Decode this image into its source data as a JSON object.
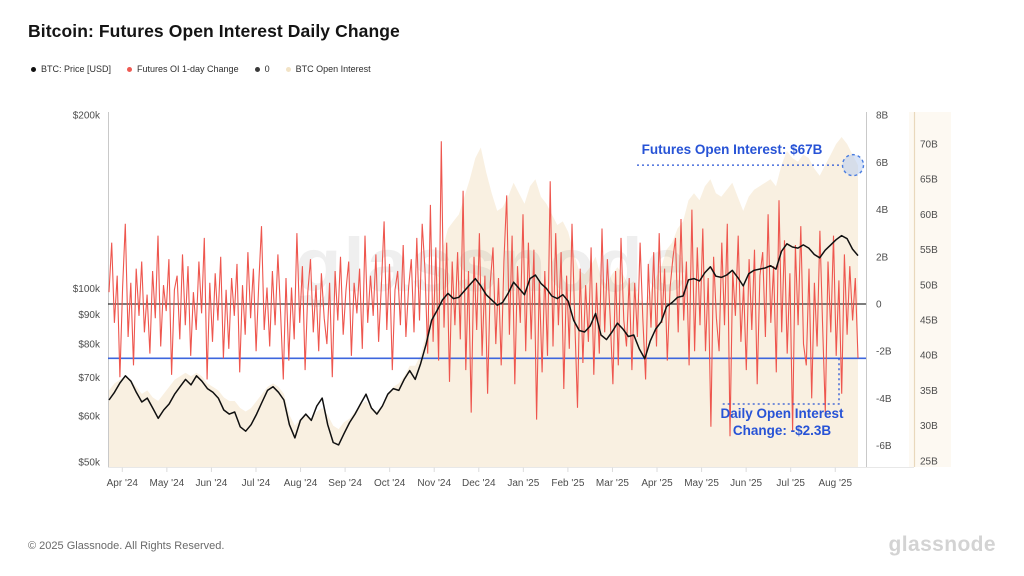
{
  "title": "Bitcoin: Futures Open Interest Daily Change",
  "legend": [
    {
      "label": "BTC: Price [USD]",
      "color": "#111111"
    },
    {
      "label": "Futures OI 1-day Change",
      "color": "#ee5a52"
    },
    {
      "label": "0",
      "color": "#3a3a3a"
    },
    {
      "label": "BTC Open Interest",
      "color": "#f2e3c6"
    }
  ],
  "chart_data": {
    "type": "line",
    "title": "Bitcoin: Futures Open Interest Daily Change",
    "watermark": "glassnode",
    "x_tick_labels": [
      "Apr '24",
      "May '24",
      "Jun '24",
      "Jul '24",
      "Aug '24",
      "Sep '24",
      "Oct '24",
      "Nov '24",
      "Dec '24",
      "Jan '25",
      "Feb '25",
      "Mar '25",
      "Apr '25",
      "May '25",
      "Jun '25",
      "Jul '25",
      "Aug '25"
    ],
    "axes": {
      "price_left": {
        "scale": "log",
        "labels": [
          "$200k",
          "$100k",
          "$90k",
          "$80k",
          "$70k",
          "$60k",
          "$50k"
        ],
        "values_k": [
          200,
          100,
          90,
          80,
          70,
          60,
          50
        ]
      },
      "change_right": {
        "scale": "linear",
        "labels": [
          "8B",
          "6B",
          "4B",
          "2B",
          "0",
          "-2B",
          "-4B",
          "-6B"
        ],
        "values_b": [
          8,
          6,
          4,
          2,
          0,
          -2,
          -4,
          -6
        ]
      },
      "oi_far_right": {
        "scale": "linear",
        "labels": [
          "70B",
          "65B",
          "60B",
          "55B",
          "50B",
          "45B",
          "40B",
          "35B",
          "30B",
          "25B"
        ],
        "values_b": [
          70,
          65,
          60,
          55,
          50,
          45,
          40,
          35,
          30,
          25
        ]
      }
    },
    "series": [
      {
        "name": "BTC: Price [USD]",
        "axis": "price_left",
        "color": "#101010",
        "unit": "USD thousands",
        "values": [
          64,
          66,
          68.5,
          70.5,
          69,
          66,
          63.5,
          64.5,
          62,
          59.5,
          61.5,
          63,
          65.5,
          67.5,
          69.5,
          68,
          70.5,
          69,
          67,
          66,
          64.5,
          61.5,
          60.5,
          61,
          57.5,
          56.5,
          58,
          60.5,
          63.5,
          66.5,
          67.5,
          66,
          64,
          58,
          55,
          59,
          60.5,
          59,
          62.5,
          64.5,
          58,
          54,
          53.5,
          56,
          58.5,
          60.5,
          63,
          65.5,
          62,
          60.5,
          62.5,
          65.5,
          67,
          66.5,
          69.5,
          72,
          69.5,
          74,
          80,
          88,
          91.5,
          95.5,
          98,
          96,
          96.5,
          99,
          101.5,
          104,
          101,
          97.5,
          95.5,
          93.5,
          94.5,
          98,
          102.5,
          100,
          97.5,
          104,
          105.5,
          102,
          100,
          97,
          96,
          97.5,
          95,
          88,
          84.5,
          84,
          86,
          90.5,
          83,
          81.5,
          84,
          87,
          85,
          82.5,
          83,
          78.5,
          75.5,
          81,
          85,
          87.5,
          93,
          94.5,
          96.5,
          97,
          103.5,
          104,
          103,
          106.5,
          109,
          105,
          104.5,
          105.5,
          107.5,
          104.5,
          101,
          106,
          107.5,
          108,
          108.5,
          109.5,
          108,
          116,
          119.5,
          118,
          117.5,
          119,
          117.5,
          114.5,
          113,
          116.5,
          119,
          121.5,
          123.5,
          122,
          117,
          114
        ]
      },
      {
        "name": "Futures OI 1-day Change",
        "axis": "change_right",
        "color": "#ee564e",
        "unit": "billion USD",
        "values": [
          0.5,
          2.6,
          -0.8,
          1.2,
          -3.1,
          0.7,
          3.4,
          -1.4,
          0.9,
          -2.6,
          1.5,
          -0.5,
          1.8,
          -1.2,
          0.4,
          -2.1,
          1.4,
          -0.6,
          2.9,
          -1.8,
          0.8,
          -0.3,
          1.9,
          -3.0,
          0.6,
          1.2,
          -1.5,
          2.1,
          -0.9,
          1.6,
          -2.2,
          0.5,
          -1.1,
          1.8,
          -0.4,
          2.8,
          -3.2,
          0.9,
          -1.6,
          1.3,
          -0.7,
          2.0,
          -2.3,
          0.6,
          -1.9,
          1.1,
          -0.5,
          1.7,
          -2.9,
          0.8,
          -1.3,
          2.2,
          -0.6,
          1.5,
          -2.0,
          0.9,
          3.3,
          -1.1,
          0.7,
          -1.8,
          1.4,
          -0.9,
          2.1,
          -0.4,
          -3.2,
          1.1,
          -2.4,
          0.7,
          -1.5,
          3.0,
          -0.8,
          1.6,
          -2.8,
          0.5,
          1.9,
          -1.2,
          0.8,
          -2.0,
          1.3,
          -0.6,
          -1.7,
          0.9,
          -3.1,
          1.4,
          -0.7,
          2.0,
          -1.3,
          0.6,
          1.8,
          -2.2,
          0.9,
          -0.4,
          1.5,
          -1.9,
          2.9,
          -0.8,
          1.2,
          -0.5,
          2.1,
          -1.6,
          0.8,
          3.5,
          -1.1,
          1.7,
          -2.8,
          0.6,
          1.4,
          -0.9,
          2.5,
          -1.4,
          0.7,
          1.9,
          -1.2,
          2.8,
          -0.7,
          3.4,
          1.5,
          -2.1,
          4.2,
          -1.6,
          2.4,
          -2.4,
          6.9,
          -1.0,
          2.6,
          -3.3,
          1.8,
          -0.9,
          2.2,
          -1.5,
          4.8,
          -2.8,
          1.4,
          -4.6,
          2.0,
          -1.1,
          3.0,
          -2.2,
          1.2,
          -3.8,
          0.9,
          2.4,
          -1.7,
          1.1,
          -2.6,
          1.8,
          4.6,
          -1.3,
          2.9,
          -3.4,
          1.6,
          -0.8,
          3.8,
          -2.0,
          2.6,
          -1.5,
          2.3,
          -4.9,
          1.0,
          -2.9,
          1.4,
          -2.2,
          5.2,
          -1.8,
          3.0,
          -0.9,
          2.2,
          -3.6,
          1.2,
          -1.9,
          3.4,
          -0.6,
          -4.4,
          1.5,
          -2.5,
          0.8,
          -1.6,
          2.4,
          -3.0,
          0.9,
          -2.1,
          3.2,
          -1.2,
          1.9,
          -0.5,
          -3.4,
          1.4,
          -2.6,
          2.8,
          -0.7,
          -1.8,
          1.1,
          -2.8,
          0.9,
          -1.4,
          2.6,
          -0.6,
          -3.2,
          1.7,
          -1.0,
          2.2,
          -1.8,
          3.0,
          -0.8,
          1.5,
          -2.4,
          0.7,
          1.9,
          2.8,
          -1.2,
          3.6,
          -0.7,
          1.8,
          -2.6,
          4.0,
          -2.0,
          2.4,
          -0.9,
          3.2,
          -2.0,
          1.1,
          -5.2,
          2.0,
          -0.6,
          -2.0,
          2.6,
          -0.9,
          3.4,
          -5.6,
          1.4,
          -0.5,
          2.9,
          -1.6,
          0.8,
          -2.8,
          1.9,
          -1.1,
          2.3,
          -3.4,
          1.2,
          2.2,
          -1.4,
          3.8,
          -0.8,
          1.6,
          -2.9,
          4.4,
          -1.2,
          2.7,
          -2.1,
          1.3,
          -5.4,
          2.5,
          -0.9,
          3.3,
          -1.7,
          -2.6,
          1.5,
          -4.0,
          0.9,
          -1.8,
          3.1,
          -0.9,
          -4.6,
          1.8,
          -1.2,
          2.9,
          -2.2,
          1.0,
          -3.8,
          2.1,
          -1.3,
          1.6,
          -0.7,
          1.1,
          -2.3
        ]
      },
      {
        "name": "BTC Open Interest",
        "axis": "oi_far_right",
        "color": "#f9f0e1",
        "fill": true,
        "unit": "billion USD",
        "values": [
          35,
          36,
          36.5,
          37,
          36.5,
          35.5,
          34.5,
          35,
          34,
          33.5,
          34.5,
          35.5,
          36.5,
          37,
          37.5,
          37,
          37.5,
          37,
          36,
          35.5,
          35,
          34,
          33.5,
          33.5,
          32.5,
          32,
          32.5,
          33.5,
          34.5,
          35.5,
          36,
          35.5,
          34.5,
          31.5,
          30,
          31,
          31.5,
          31,
          32,
          32.5,
          31.5,
          30,
          29.5,
          30.5,
          31,
          32,
          33,
          33.5,
          32.5,
          32,
          33,
          34.5,
          35.5,
          36,
          37,
          38.5,
          38.5,
          40,
          43,
          47,
          51,
          55,
          58,
          59,
          60,
          62.5,
          65,
          68,
          69.5,
          66,
          63,
          60.5,
          61,
          62.5,
          64.5,
          63,
          61.5,
          64,
          65,
          62.5,
          61.5,
          60,
          58.5,
          59,
          57.5,
          54.5,
          52,
          51.5,
          52.5,
          54,
          51,
          50,
          51.5,
          52.5,
          51.5,
          50,
          50.5,
          48,
          47,
          49,
          51,
          52.5,
          55,
          56,
          58,
          59,
          62,
          63,
          62,
          64,
          65,
          63,
          62.5,
          63.5,
          64.5,
          62.5,
          60.5,
          62.5,
          63.5,
          64,
          64.5,
          65,
          64,
          67,
          69,
          68,
          67.5,
          68.5,
          68,
          66.5,
          65.5,
          67,
          68.5,
          70,
          71,
          70,
          68.5,
          67
        ]
      },
      {
        "name": "0",
        "axis": "change_right",
        "type": "hline",
        "value": 0,
        "color": "#2e2e2e"
      }
    ],
    "annotations": [
      {
        "id": "futures-oi",
        "text": "Futures Open Interest: $67B",
        "value_b": 67,
        "color": "#2753d6"
      },
      {
        "id": "daily-change",
        "line1": "Daily Open Interest",
        "line2": "Change: -$2.3B",
        "value_b": -2.3,
        "color": "#2753d6",
        "line_color": "#3d66dd"
      }
    ]
  },
  "footer": {
    "copyright": "© 2025 Glassnode. All Rights Reserved.",
    "logo": "glassnode"
  }
}
